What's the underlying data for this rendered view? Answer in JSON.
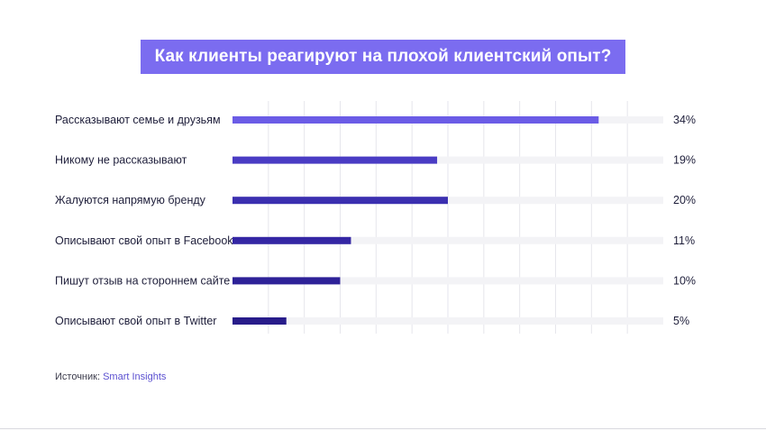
{
  "header": {
    "title": "Как клиенты реагируют на плохой клиентский опыт?"
  },
  "chart_data": {
    "type": "bar",
    "orientation": "horizontal",
    "title": "Как клиенты реагируют на плохой клиентский опыт?",
    "categories": [
      "Рассказывают семье и друзьям",
      "Никому не рассказывают",
      "Жалуются напрямую бренду",
      "Описывают свой опыт в Facebook",
      "Пишут отзыв на стороннем сайте",
      "Описывают свой опыт в Twitter"
    ],
    "values": [
      34,
      19,
      20,
      11,
      10,
      5
    ],
    "value_labels": [
      "34%",
      "19%",
      "20%",
      "11%",
      "10%",
      "5%"
    ],
    "xlim": [
      0,
      40
    ],
    "grid": true,
    "colors": [
      "#6b5ce6",
      "#4a3cc4",
      "#3b2fb0",
      "#3426a4",
      "#2e2298",
      "#281c8a"
    ],
    "track_color": "#f3f3f6",
    "grid_color": "#e6e6ec"
  },
  "source": {
    "label": "Источник:",
    "name": "Smart Insights"
  }
}
